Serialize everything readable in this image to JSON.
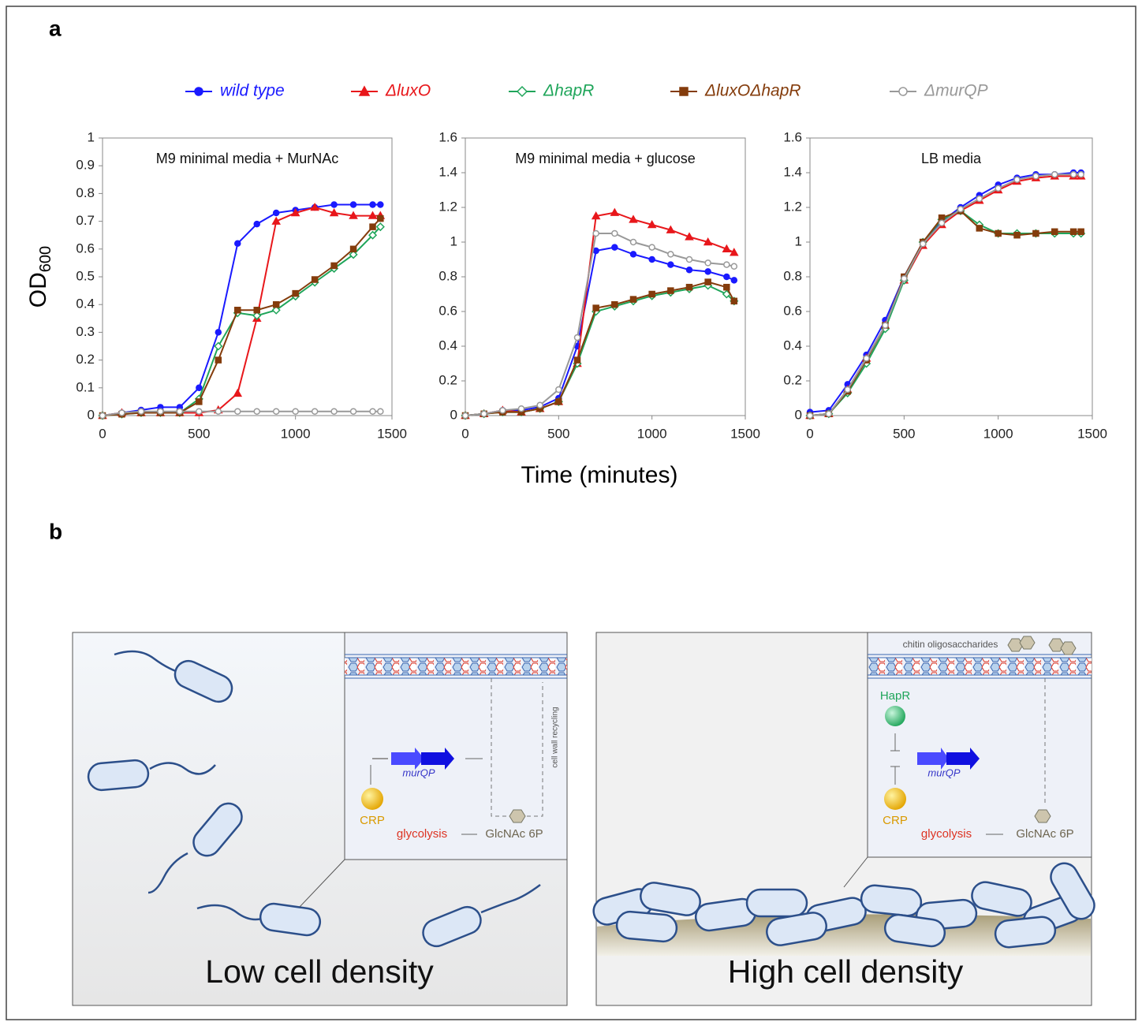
{
  "panel_labels": [
    "a",
    "b"
  ],
  "chart_data": [
    {
      "type": "line",
      "title": "M9 minimal media + MurNAc",
      "ylabel": "OD",
      "ylabel_subscript": "600",
      "legend": "top",
      "x": [
        0,
        100,
        200,
        300,
        400,
        500,
        600,
        700,
        800,
        900,
        1000,
        1100,
        1200,
        1300,
        1400,
        1440
      ],
      "xlim": [
        0,
        1500
      ],
      "xticks": [
        0,
        500,
        1000,
        1500
      ],
      "ylim": [
        0,
        1
      ],
      "yticks": [
        0,
        0.1,
        0.2,
        0.3,
        0.4,
        0.5,
        0.6,
        0.7,
        0.8,
        0.9,
        1
      ],
      "series": [
        {
          "name": "wild type",
          "color": "#1a1aff",
          "marker": "circle",
          "values": [
            0,
            0.01,
            0.02,
            0.03,
            0.03,
            0.1,
            0.3,
            0.62,
            0.69,
            0.73,
            0.74,
            0.75,
            0.76,
            0.76,
            0.76,
            0.76
          ]
        },
        {
          "name": "ΔluxO",
          "color": "#e8171b",
          "marker": "triangle",
          "values": [
            0,
            0.01,
            0.01,
            0.01,
            0.01,
            0.01,
            0.02,
            0.08,
            0.35,
            0.7,
            0.73,
            0.75,
            0.73,
            0.72,
            0.72,
            0.72
          ]
        },
        {
          "name": "ΔhapR",
          "color": "#1fa55a",
          "marker": "diamond-open",
          "values": [
            0,
            0.005,
            0.01,
            0.01,
            0.01,
            0.06,
            0.25,
            0.37,
            0.36,
            0.38,
            0.43,
            0.48,
            0.53,
            0.58,
            0.65,
            0.68
          ]
        },
        {
          "name": "ΔluxOΔhapR",
          "color": "#843c0c",
          "marker": "square",
          "values": [
            0,
            0.005,
            0.01,
            0.01,
            0.01,
            0.05,
            0.2,
            0.38,
            0.38,
            0.4,
            0.44,
            0.49,
            0.54,
            0.6,
            0.68,
            0.71
          ]
        },
        {
          "name": "ΔmurQP",
          "color": "#999999",
          "marker": "circle-open",
          "values": [
            0,
            0.01,
            0.015,
            0.015,
            0.015,
            0.015,
            0.015,
            0.015,
            0.015,
            0.015,
            0.015,
            0.015,
            0.015,
            0.015,
            0.015,
            0.015
          ]
        }
      ]
    },
    {
      "type": "line",
      "title": "M9 minimal media + glucose",
      "xlabel": "Time (minutes)",
      "x": [
        0,
        100,
        200,
        300,
        400,
        500,
        600,
        700,
        800,
        900,
        1000,
        1100,
        1200,
        1300,
        1400,
        1440
      ],
      "xlim": [
        0,
        1500
      ],
      "xticks": [
        0,
        500,
        1000,
        1500
      ],
      "ylim": [
        0,
        1.6
      ],
      "yticks": [
        0,
        0.2,
        0.4,
        0.6,
        0.8,
        1,
        1.2,
        1.4,
        1.6
      ],
      "series": [
        {
          "name": "wild type",
          "color": "#1a1aff",
          "marker": "circle",
          "values": [
            0,
            0.01,
            0.03,
            0.03,
            0.05,
            0.1,
            0.4,
            0.95,
            0.97,
            0.93,
            0.9,
            0.87,
            0.84,
            0.83,
            0.8,
            0.78
          ]
        },
        {
          "name": "ΔluxO",
          "color": "#e8171b",
          "marker": "triangle",
          "values": [
            0,
            0.01,
            0.03,
            0.02,
            0.04,
            0.08,
            0.3,
            1.15,
            1.17,
            1.13,
            1.1,
            1.07,
            1.03,
            1,
            0.96,
            0.94
          ]
        },
        {
          "name": "ΔhapR",
          "color": "#1fa55a",
          "marker": "diamond-open",
          "values": [
            0,
            0.01,
            0.02,
            0.02,
            0.04,
            0.08,
            0.3,
            0.6,
            0.63,
            0.66,
            0.69,
            0.71,
            0.73,
            0.75,
            0.7,
            0.66
          ]
        },
        {
          "name": "ΔluxOΔhapR",
          "color": "#843c0c",
          "marker": "square",
          "values": [
            0,
            0.01,
            0.02,
            0.02,
            0.04,
            0.08,
            0.32,
            0.62,
            0.64,
            0.67,
            0.7,
            0.72,
            0.74,
            0.77,
            0.74,
            0.66
          ]
        },
        {
          "name": "ΔmurQP",
          "color": "#999999",
          "marker": "circle-open",
          "values": [
            0,
            0.01,
            0.03,
            0.04,
            0.06,
            0.15,
            0.45,
            1.05,
            1.05,
            1,
            0.97,
            0.93,
            0.9,
            0.88,
            0.87,
            0.86
          ]
        }
      ]
    },
    {
      "type": "line",
      "title": "LB media",
      "x": [
        0,
        100,
        200,
        300,
        400,
        500,
        600,
        700,
        800,
        900,
        1000,
        1100,
        1200,
        1300,
        1400,
        1440
      ],
      "xlim": [
        0,
        1500
      ],
      "xticks": [
        0,
        500,
        1000,
        1500
      ],
      "ylim": [
        0,
        1.6
      ],
      "yticks": [
        0,
        0.2,
        0.4,
        0.6,
        0.8,
        1,
        1.2,
        1.4,
        1.6
      ],
      "series": [
        {
          "name": "wild type",
          "color": "#1a1aff",
          "marker": "circle",
          "values": [
            0.02,
            0.03,
            0.18,
            0.35,
            0.55,
            0.8,
            1,
            1.12,
            1.2,
            1.27,
            1.33,
            1.37,
            1.39,
            1.39,
            1.4,
            1.4
          ]
        },
        {
          "name": "ΔluxO",
          "color": "#e8171b",
          "marker": "triangle",
          "values": [
            0,
            0.01,
            0.15,
            0.33,
            0.52,
            0.78,
            0.98,
            1.1,
            1.18,
            1.24,
            1.3,
            1.35,
            1.37,
            1.38,
            1.38,
            1.38
          ]
        },
        {
          "name": "ΔhapR",
          "color": "#1fa55a",
          "marker": "diamond-open",
          "values": [
            0,
            0.01,
            0.13,
            0.3,
            0.5,
            0.78,
            1,
            1.13,
            1.18,
            1.1,
            1.05,
            1.05,
            1.05,
            1.05,
            1.05,
            1.05
          ]
        },
        {
          "name": "ΔluxOΔhapR",
          "color": "#843c0c",
          "marker": "square",
          "values": [
            0,
            0.01,
            0.14,
            0.32,
            0.52,
            0.8,
            1,
            1.14,
            1.18,
            1.08,
            1.05,
            1.04,
            1.05,
            1.06,
            1.06,
            1.06
          ]
        },
        {
          "name": "ΔmurQP",
          "color": "#999999",
          "marker": "circle-open",
          "values": [
            0,
            0.01,
            0.15,
            0.33,
            0.52,
            0.79,
            0.99,
            1.11,
            1.19,
            1.25,
            1.31,
            1.36,
            1.38,
            1.39,
            1.39,
            1.39
          ]
        }
      ]
    }
  ],
  "diagram": {
    "low": {
      "caption": "Low cell density",
      "crp": "CRP",
      "gene": "murQP",
      "glycolysis": "glycolysis",
      "glcnac": "GlcNAc 6P",
      "recycling": "cell wall recycling"
    },
    "high": {
      "caption": "High cell density",
      "chitin": "chitin oligosaccharides",
      "hapr": "HapR",
      "gene": "murQP",
      "crp": "CRP",
      "glycolysis": "glycolysis",
      "glcnac": "GlcNAc 6P"
    }
  }
}
